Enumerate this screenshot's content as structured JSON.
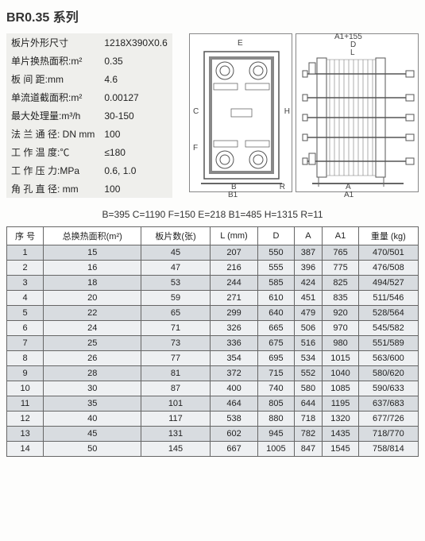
{
  "title": "BR0.35 系列",
  "specs": [
    {
      "label": "板片外形尺寸",
      "value": "1218X390X0.6"
    },
    {
      "label": "单片换热面积:m²",
      "value": "0.35"
    },
    {
      "label": "板 间 距:mm",
      "value": "4.6"
    },
    {
      "label": "单流道截面积:m²",
      "value": "0.00127"
    },
    {
      "label": "最大处理量:m³/h",
      "value": "30-150"
    },
    {
      "label": "法 兰 通 径: DN mm",
      "value": "100"
    },
    {
      "label": "工 作 温 度:℃",
      "value": "≤180"
    },
    {
      "label": "工 作 压 力:MPa",
      "value": "0.6, 1.0"
    },
    {
      "label": "角 孔 直 径: mm",
      "value": "100"
    }
  ],
  "diagram_labels": {
    "top1": "A1+155",
    "top2": "D",
    "top3": "L",
    "left_E": "E",
    "left_C": "C",
    "left_H": "H",
    "left_F": "F",
    "bottom_B": "B",
    "bottom_B1": "B1",
    "bottom_R": "R",
    "bottom_A": "A",
    "bottom_A1": "A1"
  },
  "dim_line": "B=395   C=1190   F=150   E=218   B1=485   H=1315   R=11",
  "table": {
    "columns": [
      "序 号",
      "总换热面积(m²)",
      "板片数(张)",
      "L (mm)",
      "D",
      "A",
      "A1",
      "重量 (kg)"
    ],
    "rows": [
      [
        "1",
        "15",
        "45",
        "207",
        "550",
        "387",
        "765",
        "470/501"
      ],
      [
        "2",
        "16",
        "47",
        "216",
        "555",
        "396",
        "775",
        "476/508"
      ],
      [
        "3",
        "18",
        "53",
        "244",
        "585",
        "424",
        "825",
        "494/527"
      ],
      [
        "4",
        "20",
        "59",
        "271",
        "610",
        "451",
        "835",
        "511/546"
      ],
      [
        "5",
        "22",
        "65",
        "299",
        "640",
        "479",
        "920",
        "528/564"
      ],
      [
        "6",
        "24",
        "71",
        "326",
        "665",
        "506",
        "970",
        "545/582"
      ],
      [
        "7",
        "25",
        "73",
        "336",
        "675",
        "516",
        "980",
        "551/589"
      ],
      [
        "8",
        "26",
        "77",
        "354",
        "695",
        "534",
        "1015",
        "563/600"
      ],
      [
        "9",
        "28",
        "81",
        "372",
        "715",
        "552",
        "1040",
        "580/620"
      ],
      [
        "10",
        "30",
        "87",
        "400",
        "740",
        "580",
        "1085",
        "590/633"
      ],
      [
        "11",
        "35",
        "101",
        "464",
        "805",
        "644",
        "1195",
        "637/683"
      ],
      [
        "12",
        "40",
        "117",
        "538",
        "880",
        "718",
        "1320",
        "677/726"
      ],
      [
        "13",
        "45",
        "131",
        "602",
        "945",
        "782",
        "1435",
        "718/770"
      ],
      [
        "14",
        "50",
        "145",
        "667",
        "1005",
        "847",
        "1545",
        "758/814"
      ]
    ]
  }
}
